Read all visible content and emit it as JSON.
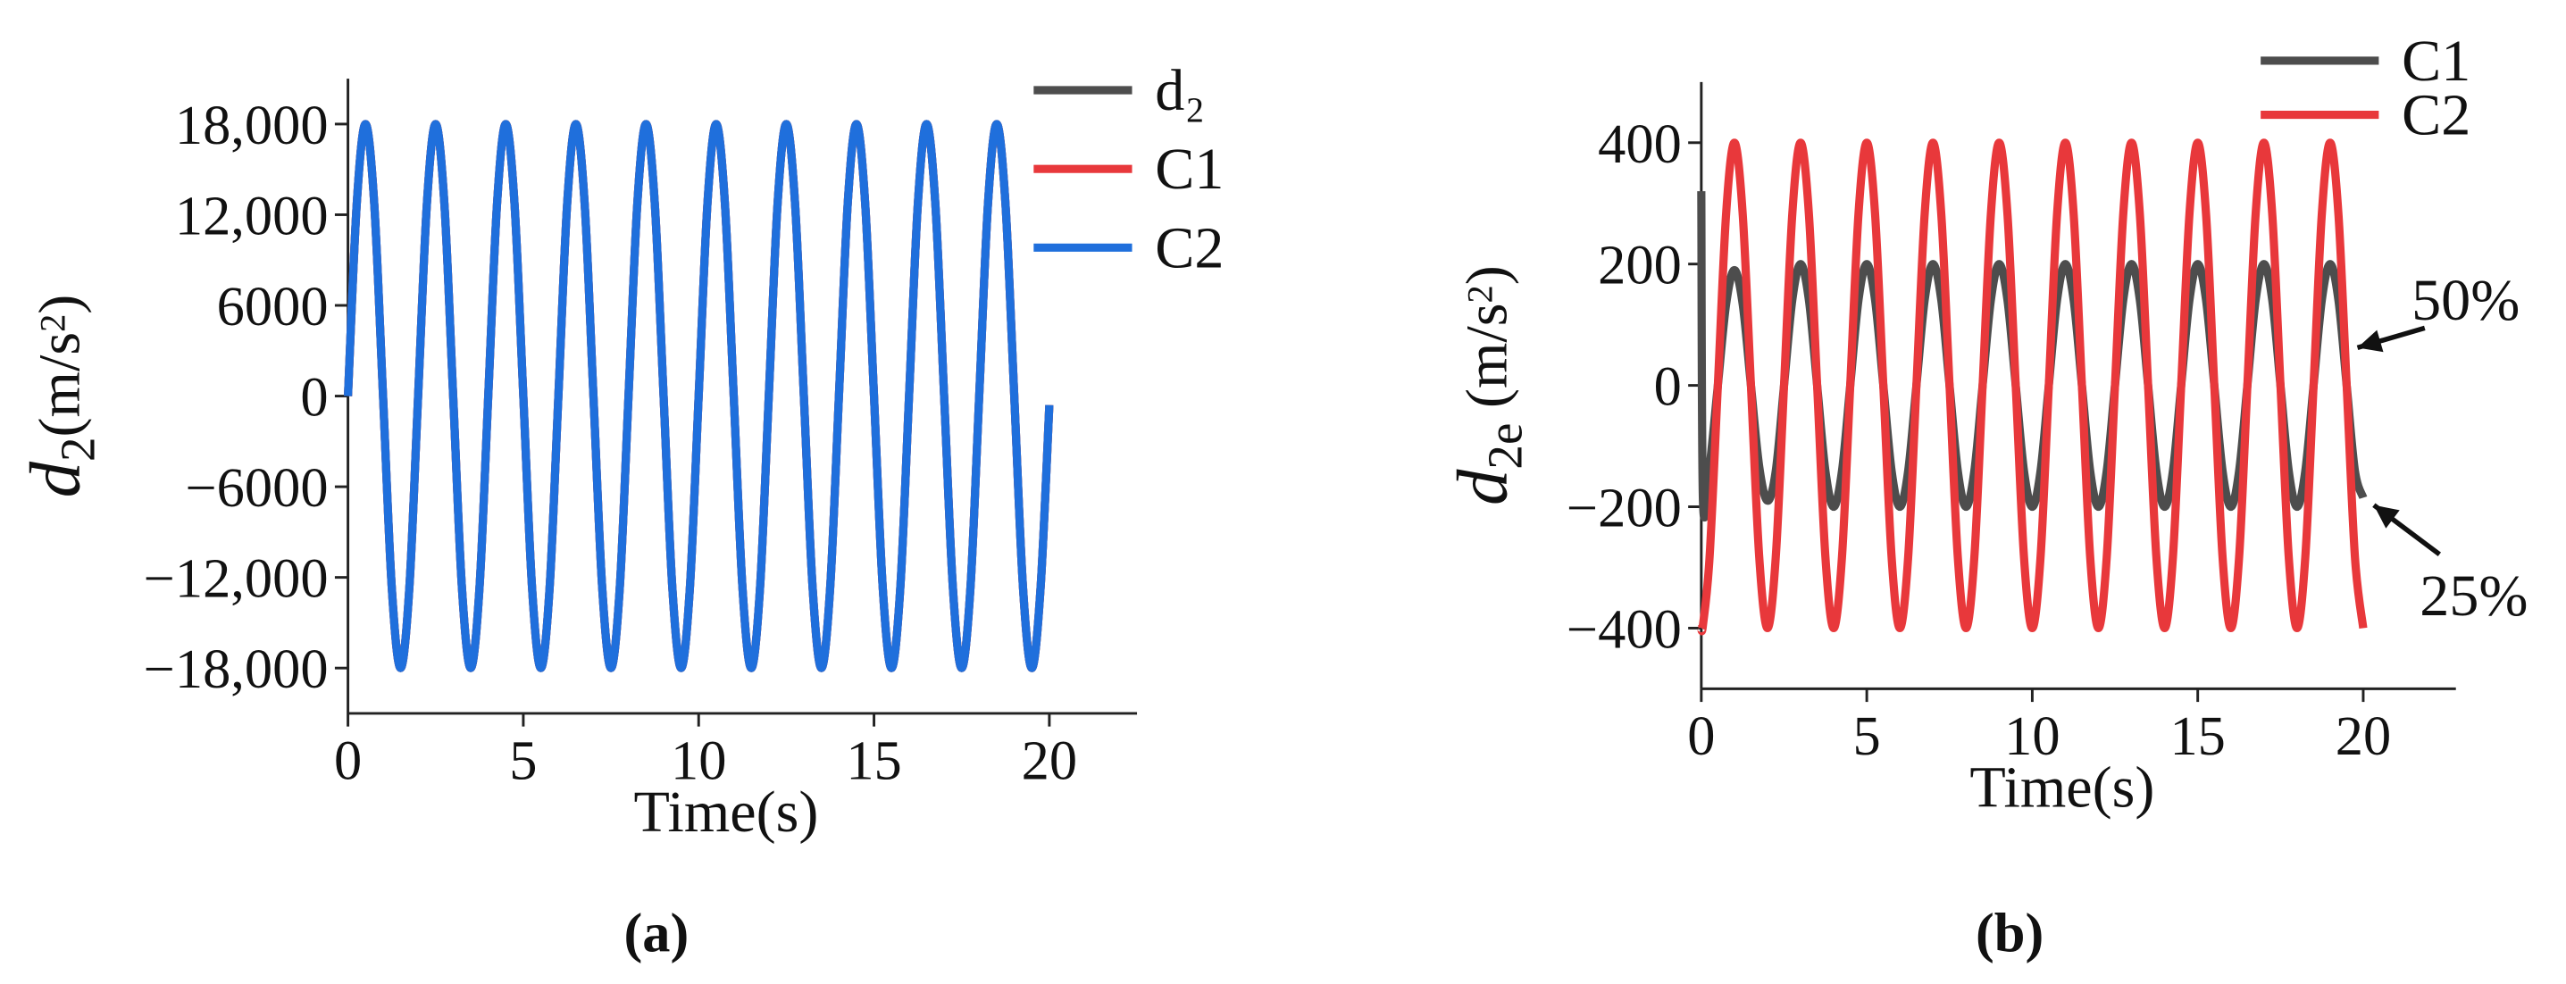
{
  "chart_data": [
    {
      "type": "line",
      "caption": "(a)",
      "xlabel": "Time(s)",
      "ylabel": [
        "d",
        "2",
        "(m/s",
        "2",
        ")"
      ],
      "xlim": [
        0,
        22.5
      ],
      "xticks": [
        0,
        5,
        10,
        15,
        20
      ],
      "ylim": [
        -21000,
        21000
      ],
      "yticks": [
        {
          "value": -18000,
          "label": "−18,000"
        },
        {
          "value": -12000,
          "label": "−12,000"
        },
        {
          "value": -6000,
          "label": "−6000"
        },
        0,
        {
          "value": 6000,
          "label": "6000"
        },
        {
          "value": 12000,
          "label": "12,000"
        },
        {
          "value": 18000,
          "label": "18,000"
        }
      ],
      "legend": "upper right",
      "grid": false,
      "x": [
        0,
        0.25,
        0.5,
        0.75,
        1,
        1.25,
        1.5,
        1.75,
        2,
        2.25,
        2.5,
        2.75,
        3,
        3.25,
        3.5,
        3.75,
        4,
        4.25,
        4.5,
        4.75,
        5,
        5.25,
        5.5,
        5.75,
        6,
        6.25,
        6.5,
        6.75,
        7,
        7.25,
        7.5,
        7.75,
        8,
        8.25,
        8.5,
        8.75,
        9,
        9.25,
        9.5,
        9.75,
        10,
        10.25,
        10.5,
        10.75,
        11,
        11.25,
        11.5,
        11.75,
        12,
        12.25,
        12.5,
        12.75,
        13,
        13.25,
        13.5,
        13.75,
        14,
        14.25,
        14.5,
        14.75,
        15,
        15.25,
        15.5,
        15.75,
        16,
        16.25,
        16.5,
        16.75,
        17,
        17.25,
        17.5,
        17.75,
        18,
        18.25,
        18.5,
        18.75,
        19,
        19.25,
        19.5,
        19.75,
        20
      ],
      "series": [
        {
          "name": "d₂",
          "color": "#4d4d4d",
          "values": [
            0,
            12700,
            18000,
            12700,
            0,
            -12700,
            -18000,
            -12700,
            0,
            12700,
            18000,
            12700,
            0,
            -12700,
            -18000,
            -12700,
            0,
            12700,
            18000,
            12700,
            0,
            -12700,
            -18000,
            -12700,
            0,
            12700,
            18000,
            12700,
            0,
            -12700,
            -18000,
            -12700,
            0,
            12700,
            18000,
            12700,
            0,
            -12700,
            -18000,
            -12700,
            0,
            12700,
            18000,
            12700,
            0,
            -12700,
            -18000,
            -12700,
            0,
            12700,
            18000,
            12700,
            0,
            -12700,
            -18000,
            -12700,
            0,
            12700,
            18000,
            12700,
            0,
            -12700,
            -18000,
            -12700,
            0,
            12700,
            18000,
            12700,
            0,
            -12700,
            -18000,
            -12700,
            0,
            12700,
            18000,
            12700,
            0,
            -12700,
            -18000,
            -12700,
            -600
          ]
        },
        {
          "name": "C1",
          "color": "#e8383b",
          "values": [
            0,
            12700,
            18000,
            12700,
            0,
            -12700,
            -18000,
            -12700,
            0,
            12700,
            18000,
            12700,
            0,
            -12700,
            -18000,
            -12700,
            0,
            12700,
            18000,
            12700,
            0,
            -12700,
            -18000,
            -12700,
            0,
            12700,
            18000,
            12700,
            0,
            -12700,
            -18000,
            -12700,
            0,
            12700,
            18000,
            12700,
            0,
            -12700,
            -18000,
            -12700,
            0,
            12700,
            18000,
            12700,
            0,
            -12700,
            -18000,
            -12700,
            0,
            12700,
            18000,
            12700,
            0,
            -12700,
            -18000,
            -12700,
            0,
            12700,
            18000,
            12700,
            0,
            -12700,
            -18000,
            -12700,
            0,
            12700,
            18000,
            12700,
            0,
            -12700,
            -18000,
            -12700,
            0,
            12700,
            18000,
            12700,
            0,
            -12700,
            -18000,
            -12700,
            -600
          ]
        },
        {
          "name": "C2",
          "color": "#1f6fdc",
          "values": [
            0,
            12700,
            18000,
            12700,
            0,
            -12700,
            -18000,
            -12700,
            0,
            12700,
            18000,
            12700,
            0,
            -12700,
            -18000,
            -12700,
            0,
            12700,
            18000,
            12700,
            0,
            -12700,
            -18000,
            -12700,
            0,
            12700,
            18000,
            12700,
            0,
            -12700,
            -18000,
            -12700,
            0,
            12700,
            18000,
            12700,
            0,
            -12700,
            -18000,
            -12700,
            0,
            12700,
            18000,
            12700,
            0,
            -12700,
            -18000,
            -12700,
            0,
            12700,
            18000,
            12700,
            0,
            -12700,
            -18000,
            -12700,
            0,
            12700,
            18000,
            12700,
            0,
            -12700,
            -18000,
            -12700,
            0,
            12700,
            18000,
            12700,
            0,
            -12700,
            -18000,
            -12700,
            0,
            12700,
            18000,
            12700,
            0,
            -12700,
            -18000,
            -12700,
            -600
          ]
        }
      ]
    },
    {
      "type": "line",
      "caption": "(b)",
      "xlabel": "Time(s)",
      "ylabel": [
        "d",
        "2e",
        " (m/s",
        "2",
        ")"
      ],
      "xlim": [
        0,
        22.8
      ],
      "xticks": [
        0,
        5,
        10,
        15,
        20
      ],
      "ylim": [
        -500,
        500
      ],
      "yticks": [
        {
          "value": -400,
          "label": "−400"
        },
        {
          "value": -200,
          "label": "−200"
        },
        0,
        200,
        400
      ],
      "legend": "upper right",
      "grid": false,
      "annotations": [
        "50%",
        "25%"
      ],
      "x": [
        0,
        0.05,
        0.25,
        0.5,
        0.75,
        1,
        1.25,
        1.5,
        1.75,
        2,
        2.25,
        2.5,
        2.75,
        3,
        3.25,
        3.5,
        3.75,
        4,
        4.25,
        4.5,
        4.75,
        5,
        5.25,
        5.5,
        5.75,
        6,
        6.25,
        6.5,
        6.75,
        7,
        7.25,
        7.5,
        7.75,
        8,
        8.25,
        8.5,
        8.75,
        9,
        9.25,
        9.5,
        9.75,
        10,
        10.25,
        10.5,
        10.75,
        11,
        11.25,
        11.5,
        11.75,
        12,
        12.25,
        12.5,
        12.75,
        13,
        13.25,
        13.5,
        13.75,
        14,
        14.25,
        14.5,
        14.75,
        15,
        15.25,
        15.5,
        15.75,
        16,
        16.25,
        16.5,
        16.75,
        17,
        17.25,
        17.5,
        17.75,
        18,
        18.25,
        18.5,
        18.75,
        19,
        19.25,
        19.5,
        19.75,
        20
      ],
      "series": [
        {
          "name": "C1",
          "color": "#4d4d4d",
          "values": [
            320,
            -190,
            -134,
            0,
            134,
            190,
            134,
            0,
            -134,
            -190,
            -141,
            0,
            141,
            200,
            141,
            0,
            -141,
            -200,
            -141,
            0,
            141,
            200,
            141,
            0,
            -141,
            -200,
            -141,
            0,
            141,
            200,
            141,
            0,
            -141,
            -200,
            -141,
            0,
            141,
            200,
            141,
            0,
            -141,
            -200,
            -141,
            0,
            141,
            200,
            141,
            0,
            -141,
            -200,
            -141,
            0,
            141,
            200,
            141,
            0,
            -141,
            -200,
            -141,
            0,
            141,
            200,
            141,
            0,
            -141,
            -200,
            -141,
            0,
            141,
            200,
            141,
            0,
            -141,
            -200,
            -141,
            0,
            141,
            200,
            141,
            0,
            -141,
            -185
          ]
        },
        {
          "name": "C2",
          "color": "#e8383b",
          "values": [
            -400,
            -395,
            -283,
            0,
            283,
            400,
            283,
            0,
            -283,
            -400,
            -283,
            0,
            283,
            400,
            283,
            0,
            -283,
            -400,
            -283,
            0,
            283,
            400,
            283,
            0,
            -283,
            -400,
            -283,
            0,
            283,
            400,
            283,
            0,
            -283,
            -400,
            -283,
            0,
            283,
            400,
            283,
            0,
            -283,
            -400,
            -283,
            0,
            283,
            400,
            283,
            0,
            -283,
            -400,
            -283,
            0,
            283,
            400,
            283,
            0,
            -283,
            -400,
            -283,
            0,
            283,
            400,
            283,
            0,
            -283,
            -400,
            -283,
            0,
            283,
            400,
            283,
            0,
            -283,
            -400,
            -283,
            0,
            283,
            400,
            283,
            0,
            -283,
            -400
          ]
        }
      ]
    }
  ]
}
